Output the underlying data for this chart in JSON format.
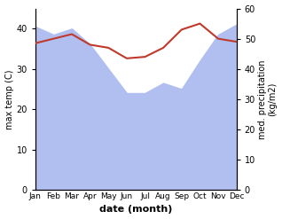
{
  "months": [
    "Jan",
    "Feb",
    "Mar",
    "Apr",
    "May",
    "Jun",
    "Jul",
    "Aug",
    "Sep",
    "Oct",
    "Nov",
    "Dec"
  ],
  "max_temp_fill": [
    40.5,
    38.5,
    40.0,
    36.0,
    30.0,
    24.0,
    24.0,
    26.5,
    25.0,
    32.0,
    38.5,
    41.0
  ],
  "precipitation": [
    48.5,
    50.0,
    51.5,
    48.0,
    47.0,
    43.5,
    44.0,
    47.0,
    53.0,
    55.0,
    50.0,
    49.0
  ],
  "temp_color": "#c0392b",
  "precip_fill_color": "#b0bef0",
  "ylim_temp": [
    0,
    45
  ],
  "ylim_precip": [
    0,
    60
  ],
  "ylabel_left": "max temp (C)",
  "ylabel_right": "med. precipitation\n(kg/m2)",
  "xlabel": "date (month)",
  "temp_yticks": [
    0,
    10,
    20,
    30,
    40
  ],
  "precip_yticks": [
    0,
    10,
    20,
    30,
    40,
    50,
    60
  ]
}
